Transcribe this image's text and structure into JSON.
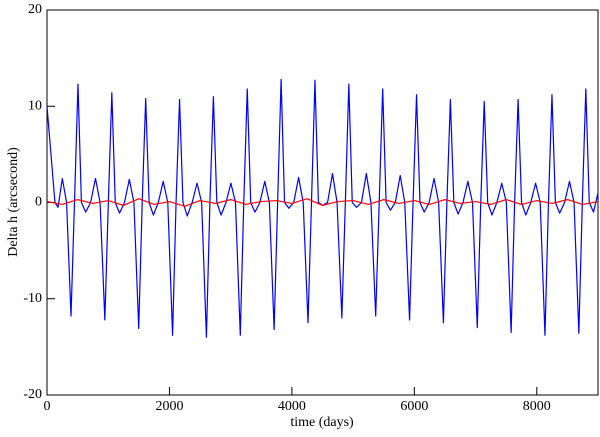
{
  "chart_data": {
    "type": "line",
    "x_label": "time (days)",
    "y_label": "Delta h (arcsecond)",
    "xlim": [
      0,
      9000
    ],
    "xticks": [
      0,
      2000,
      4000,
      6000,
      8000
    ],
    "ylim": [
      -20,
      20
    ],
    "yticks": [
      -20,
      -10,
      0,
      10,
      20
    ],
    "series": [
      {
        "color": "#0000ff",
        "x": [
          0,
          130,
          180,
          250,
          320,
          392,
          449,
          506,
          562,
          632,
          712,
          792,
          867,
          945,
          1002,
          1059,
          1115,
          1185,
          1265,
          1345,
          1420,
          1498,
          1555,
          1612,
          1668,
          1738,
          1818,
          1898,
          1973,
          2051,
          2108,
          2165,
          2221,
          2291,
          2371,
          2451,
          2526,
          2604,
          2661,
          2718,
          2774,
          2844,
          2924,
          3004,
          3079,
          3157,
          3214,
          3271,
          3327,
          3397,
          3477,
          3557,
          3632,
          3710,
          3767,
          3824,
          3880,
          3950,
          4030,
          4110,
          4185,
          4263,
          4320,
          4377,
          4433,
          4503,
          4583,
          4663,
          4738,
          4816,
          4873,
          4930,
          4986,
          5056,
          5136,
          5216,
          5291,
          5369,
          5426,
          5483,
          5539,
          5609,
          5689,
          5769,
          5844,
          5922,
          5979,
          6036,
          6092,
          6162,
          6242,
          6322,
          6397,
          6475,
          6532,
          6589,
          6645,
          6715,
          6795,
          6875,
          6950,
          7028,
          7085,
          7142,
          7198,
          7268,
          7348,
          7428,
          7503,
          7581,
          7638,
          7695,
          7751,
          7821,
          7901,
          7981,
          8056,
          8134,
          8191,
          8248,
          8304,
          8374,
          8454,
          8534,
          8609,
          8687,
          8744,
          8801,
          8857,
          8927,
          9000
        ],
        "values": [
          10,
          0,
          -0.5,
          2.5,
          0,
          -11.8,
          0,
          12.3,
          0,
          -1,
          0,
          2.5,
          0,
          -12.2,
          0,
          11.4,
          0,
          -1.1,
          0,
          2.4,
          0,
          -13.1,
          0,
          10.8,
          0,
          -1.3,
          0,
          2.2,
          0,
          -13.8,
          0,
          10.7,
          0,
          -1.4,
          0,
          2.0,
          0,
          -14,
          0,
          11,
          0,
          -1.3,
          0,
          2.0,
          0,
          -13.8,
          0,
          11.8,
          0,
          -1,
          0,
          2.2,
          0,
          -13.2,
          0,
          12.8,
          0,
          -0.6,
          0,
          2.6,
          0,
          -12.5,
          0,
          12.7,
          0,
          -0.3,
          0,
          3.0,
          0,
          -12,
          0,
          12.3,
          0,
          -0.5,
          0,
          3.0,
          0,
          -11.8,
          0,
          11.8,
          0,
          -0.8,
          0,
          2.8,
          0,
          -12.2,
          0,
          11.2,
          0,
          -1,
          0,
          2.5,
          0,
          -12.5,
          0,
          10.7,
          0,
          -1.2,
          0,
          2.2,
          0,
          -13,
          0,
          10.5,
          0,
          -1.3,
          0,
          2.0,
          0,
          -13.5,
          0,
          10.7,
          0,
          -1.3,
          0,
          2.0,
          0,
          -13.8,
          0,
          11.2,
          0,
          -1.1,
          0,
          2.2,
          0,
          -13.6,
          0,
          11.8,
          0,
          -1,
          1
        ]
      },
      {
        "color": "#ff0000",
        "x": [
          0,
          250,
          500,
          750,
          1000,
          1250,
          1500,
          1750,
          2000,
          2250,
          2500,
          2750,
          3000,
          3250,
          3500,
          3750,
          4000,
          4250,
          4500,
          4750,
          5000,
          5250,
          5500,
          5750,
          6000,
          6250,
          6500,
          6750,
          7000,
          7250,
          7500,
          7750,
          8000,
          8250,
          8500,
          8750,
          9000
        ],
        "values": [
          0.1,
          -0.2,
          0.3,
          -0.1,
          0.2,
          -0.3,
          0.4,
          -0.2,
          0.1,
          -0.4,
          0.2,
          -0.1,
          0.3,
          -0.2,
          0.1,
          0.2,
          -0.1,
          0.4,
          -0.3,
          0.1,
          0.2,
          -0.2,
          0.3,
          -0.1,
          0.2,
          -0.2,
          0.3,
          -0.1,
          0.1,
          -0.2,
          0.3,
          -0.2,
          0.2,
          -0.1,
          0.3,
          -0.2,
          0.1
        ]
      }
    ]
  }
}
